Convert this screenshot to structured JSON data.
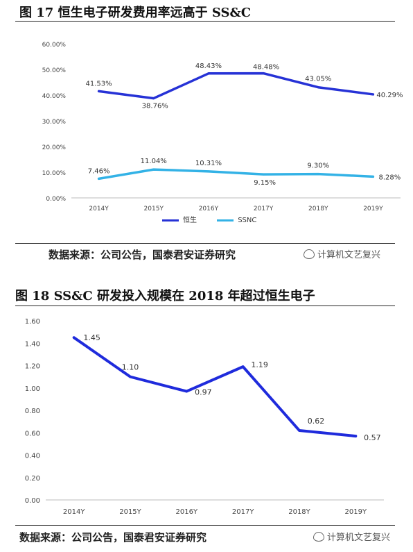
{
  "figures": [
    {
      "title": "图 17 恒生电子研发费用率远高于 SS&C",
      "source": "数据来源：公司公告，国泰君安证券研究",
      "watermark": "计算机文艺复兴"
    },
    {
      "title": "图 18 SS&C 研发投入规模在 2018 年超过恒生电子",
      "source": "数据来源：公司公告，国泰君安证券研究",
      "watermark": "计算机文艺复兴"
    }
  ],
  "chart_data": [
    {
      "type": "line",
      "categories": [
        "2014Y",
        "2015Y",
        "2016Y",
        "2017Y",
        "2018Y",
        "2019Y"
      ],
      "series": [
        {
          "name": "恒生",
          "color": "#2632d6",
          "values": [
            41.53,
            38.76,
            48.43,
            48.48,
            43.05,
            40.29
          ],
          "labels": [
            "41.53%",
            "38.76%",
            "48.43%",
            "48.48%",
            "43.05%",
            "40.29%"
          ]
        },
        {
          "name": "SSNC",
          "color": "#33b2e6",
          "values": [
            7.46,
            11.04,
            10.31,
            9.15,
            9.3,
            8.28
          ],
          "labels": [
            "7.46%",
            "11.04%",
            "10.31%",
            "9.15%",
            "9.30%",
            "8.28%"
          ]
        }
      ],
      "yticks": [
        "0.00%",
        "10.00%",
        "20.00%",
        "30.00%",
        "40.00%",
        "50.00%",
        "60.00%"
      ],
      "ylim": [
        0,
        60
      ],
      "legend_position": "bottom"
    },
    {
      "type": "line",
      "categories": [
        "2014Y",
        "2015Y",
        "2016Y",
        "2017Y",
        "2018Y",
        "2019Y"
      ],
      "series": [
        {
          "color": "#1f2bdc",
          "values": [
            1.45,
            1.1,
            0.97,
            1.19,
            0.62,
            0.57
          ],
          "labels": [
            "1.45",
            "1.10",
            "0.97",
            "1.19",
            "0.62",
            "0.57"
          ]
        }
      ],
      "yticks": [
        "0.00",
        "0.20",
        "0.40",
        "0.60",
        "0.80",
        "1.00",
        "1.20",
        "1.40",
        "1.60"
      ],
      "ylim": [
        0,
        1.6
      ]
    }
  ]
}
